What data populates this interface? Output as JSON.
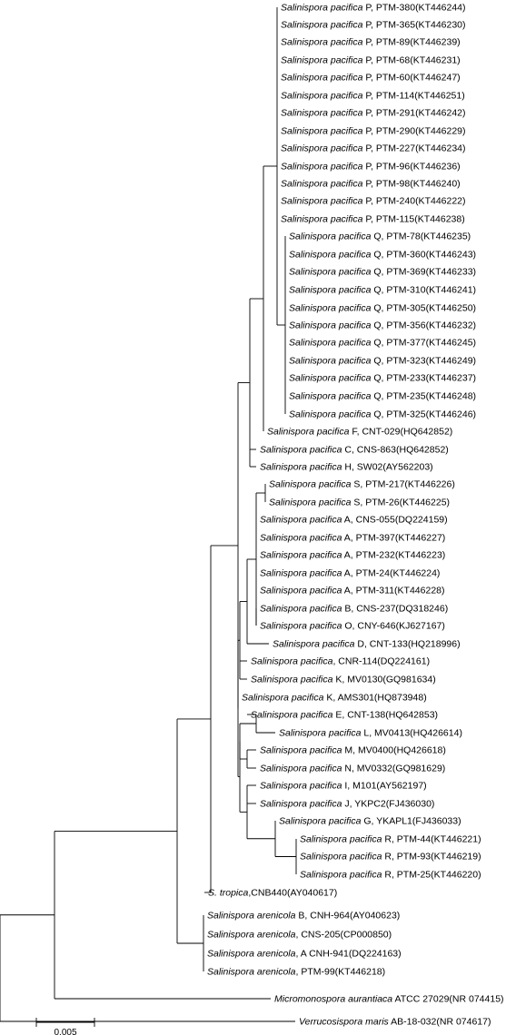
{
  "taxa": [
    {
      "species": "Salinispora pacifica",
      "rest": " P, PTM-380",
      "acc": "(KT446244)"
    },
    {
      "species": "Salinispora pacifica",
      "rest": " P, PTM-365",
      "acc": "(KT446230)"
    },
    {
      "species": "Salinispora pacifica",
      "rest": " P, PTM-89",
      "acc": "(KT446239)"
    },
    {
      "species": "Salinispora pacifica",
      "rest": " P, PTM-68",
      "acc": "(KT446231)"
    },
    {
      "species": "Salinispora pacifica",
      "rest": " P, PTM-60",
      "acc": "(KT446247)"
    },
    {
      "species": "Salinispora pacifica",
      "rest": " P, PTM-114",
      "acc": "(KT446251)"
    },
    {
      "species": "Salinispora pacifica",
      "rest": " P, PTM-291",
      "acc": "(KT446242)"
    },
    {
      "species": "Salinispora pacifica",
      "rest": " P, PTM-290",
      "acc": "(KT446229)"
    },
    {
      "species": "Salinispora pacifica",
      "rest": " P, PTM-227",
      "acc": "(KT446234)"
    },
    {
      "species": "Salinispora pacifica",
      "rest": " P, PTM-96",
      "acc": "(KT446236)"
    },
    {
      "species": "Salinispora pacifica",
      "rest": " P, PTM-98",
      "acc": "(KT446240)"
    },
    {
      "species": "Salinispora pacifica",
      "rest": " P, PTM-240",
      "acc": "(KT446222)"
    },
    {
      "species": "Salinispora pacifica",
      "rest": " P, PTM-115",
      "acc": "(KT446238)"
    },
    {
      "species": "Salinispora pacifica",
      "rest": " Q, PTM-78",
      "acc": "(KT446235)"
    },
    {
      "species": "Salinispora pacifica",
      "rest": " Q, PTM-360",
      "acc": "(KT446243)"
    },
    {
      "species": "Salinispora pacifica",
      "rest": " Q, PTM-369",
      "acc": "(KT446233)"
    },
    {
      "species": "Salinispora pacifica",
      "rest": " Q, PTM-310",
      "acc": "(KT446241)"
    },
    {
      "species": "Salinispora pacifica",
      "rest": " Q, PTM-305",
      "acc": "(KT446250)"
    },
    {
      "species": "Salinispora pacifica",
      "rest": " Q, PTM-356",
      "acc": "(KT446232)"
    },
    {
      "species": "Salinispora pacifica",
      "rest": " Q, PTM-377",
      "acc": "(KT446245)"
    },
    {
      "species": "Salinispora pacifica",
      "rest": " Q, PTM-323",
      "acc": "(KT446249)"
    },
    {
      "species": "Salinispora pacifica",
      "rest": " Q, PTM-233",
      "acc": "(KT446237)"
    },
    {
      "species": "Salinispora pacifica",
      "rest": " Q, PTM-235",
      "acc": "(KT446248)"
    },
    {
      "species": "Salinispora pacifica",
      "rest": " Q, PTM-325",
      "acc": "(KT446246)"
    },
    {
      "species": "Salinispora pacifica",
      "rest": " F, CNT-029",
      "acc": "(HQ642852)"
    },
    {
      "species": "Salinispora pacifica",
      "rest": " C, CNS-863",
      "acc": "(HQ642852)"
    },
    {
      "species": "Salinispora pacifica",
      "rest": " H, SW02",
      "acc": "(AY562203)"
    },
    {
      "species": "Salinispora pacifica",
      "rest": " S, PTM-217",
      "acc": "(KT446226)"
    },
    {
      "species": "Salinispora pacifica",
      "rest": " S, PTM-26",
      "acc": "(KT446225)"
    },
    {
      "species": "Salinispora pacifica",
      "rest": " A, CNS-055",
      "acc": "(DQ224159)"
    },
    {
      "species": "Salinispora pacifica",
      "rest": " A, PTM-397",
      "acc": "(KT446227)"
    },
    {
      "species": "Salinispora pacifica",
      "rest": " A, PTM-232",
      "acc": "(KT446223)"
    },
    {
      "species": "Salinispora pacifica",
      "rest": " A, PTM-24",
      "acc": "(KT446224)"
    },
    {
      "species": "Salinispora pacifica",
      "rest": " A, PTM-311",
      "acc": "(KT446228)"
    },
    {
      "species": "Salinispora pacifica",
      "rest": " B, CNS-237",
      "acc": "(DQ318246)"
    },
    {
      "species": "Salinispora pacifica",
      "rest": " O, CNY-646",
      "acc": "(KJ627167)"
    },
    {
      "species": "Salinispora pacifica",
      "rest": " D, CNT-133",
      "acc": "(HQ218996)"
    },
    {
      "species": "Salinispora pacifica",
      "rest": ", CNR-114",
      "acc": "(DQ224161)"
    },
    {
      "species": "Salinispora pacifica",
      "rest": " K, MV0130",
      "acc": "(GQ981634)"
    },
    {
      "species": "Salinispora pacifica",
      "rest": " K, AMS301",
      "acc": "(HQ873948)"
    },
    {
      "species": "Salinispora pacifica",
      "rest": " E, CNT-138",
      "acc": "(HQ642853)"
    },
    {
      "species": "Salinispora pacifica",
      "rest": " L, MV0413",
      "acc": "(HQ426614)"
    },
    {
      "species": "Salinispora pacifica",
      "rest": " M, MV0400",
      "acc": "(HQ426618)"
    },
    {
      "species": "Salinispora pacifica",
      "rest": " N, MV0332",
      "acc": "(GQ981629)"
    },
    {
      "species": "Salinispora pacifica",
      "rest": " I, M101",
      "acc": "(AY562197)"
    },
    {
      "species": "Salinispora pacifica",
      "rest": " J, YKPC2",
      "acc": "(FJ436030)"
    },
    {
      "species": "Salinispora pacifica",
      "rest": " G, YKAPL1",
      "acc": "(FJ436033)"
    },
    {
      "species": "Salinispora pacifica",
      "rest": " R, PTM-44",
      "acc": "(KT446221)"
    },
    {
      "species": "Salinispora pacifica",
      "rest": " R, PTM-93",
      "acc": "(KT446219)"
    },
    {
      "species": "Salinispora pacifica",
      "rest": " R, PTM-25",
      "acc": "(KT446220)"
    },
    {
      "species": "S. tropica",
      "rest": ",CNB440",
      "acc": "(AY040617)"
    },
    {
      "species": "Salinispora arenicola",
      "rest": " B, CNH-964",
      "acc": "(AY040623)"
    },
    {
      "species": "Salinispora arenicola",
      "rest": ", CNS-205",
      "acc": "(CP000850)"
    },
    {
      "species": "Salinispora arenicola",
      "rest": ", A CNH-941",
      "acc": "(DQ224163)"
    },
    {
      "species": "Salinispora arenicola",
      "rest": ", PTM-99",
      "acc": "(KT446218)"
    },
    {
      "species": "Micromonospora aurantiaca",
      "rest": " ATCC 27029",
      "acc": "(NR 074415)"
    },
    {
      "species": "Verrucosispora maris",
      "rest": " AB-18-032",
      "acc": "(NR 074617)"
    }
  ],
  "scale_bar": {
    "label": "0.005",
    "length": 0.005
  }
}
